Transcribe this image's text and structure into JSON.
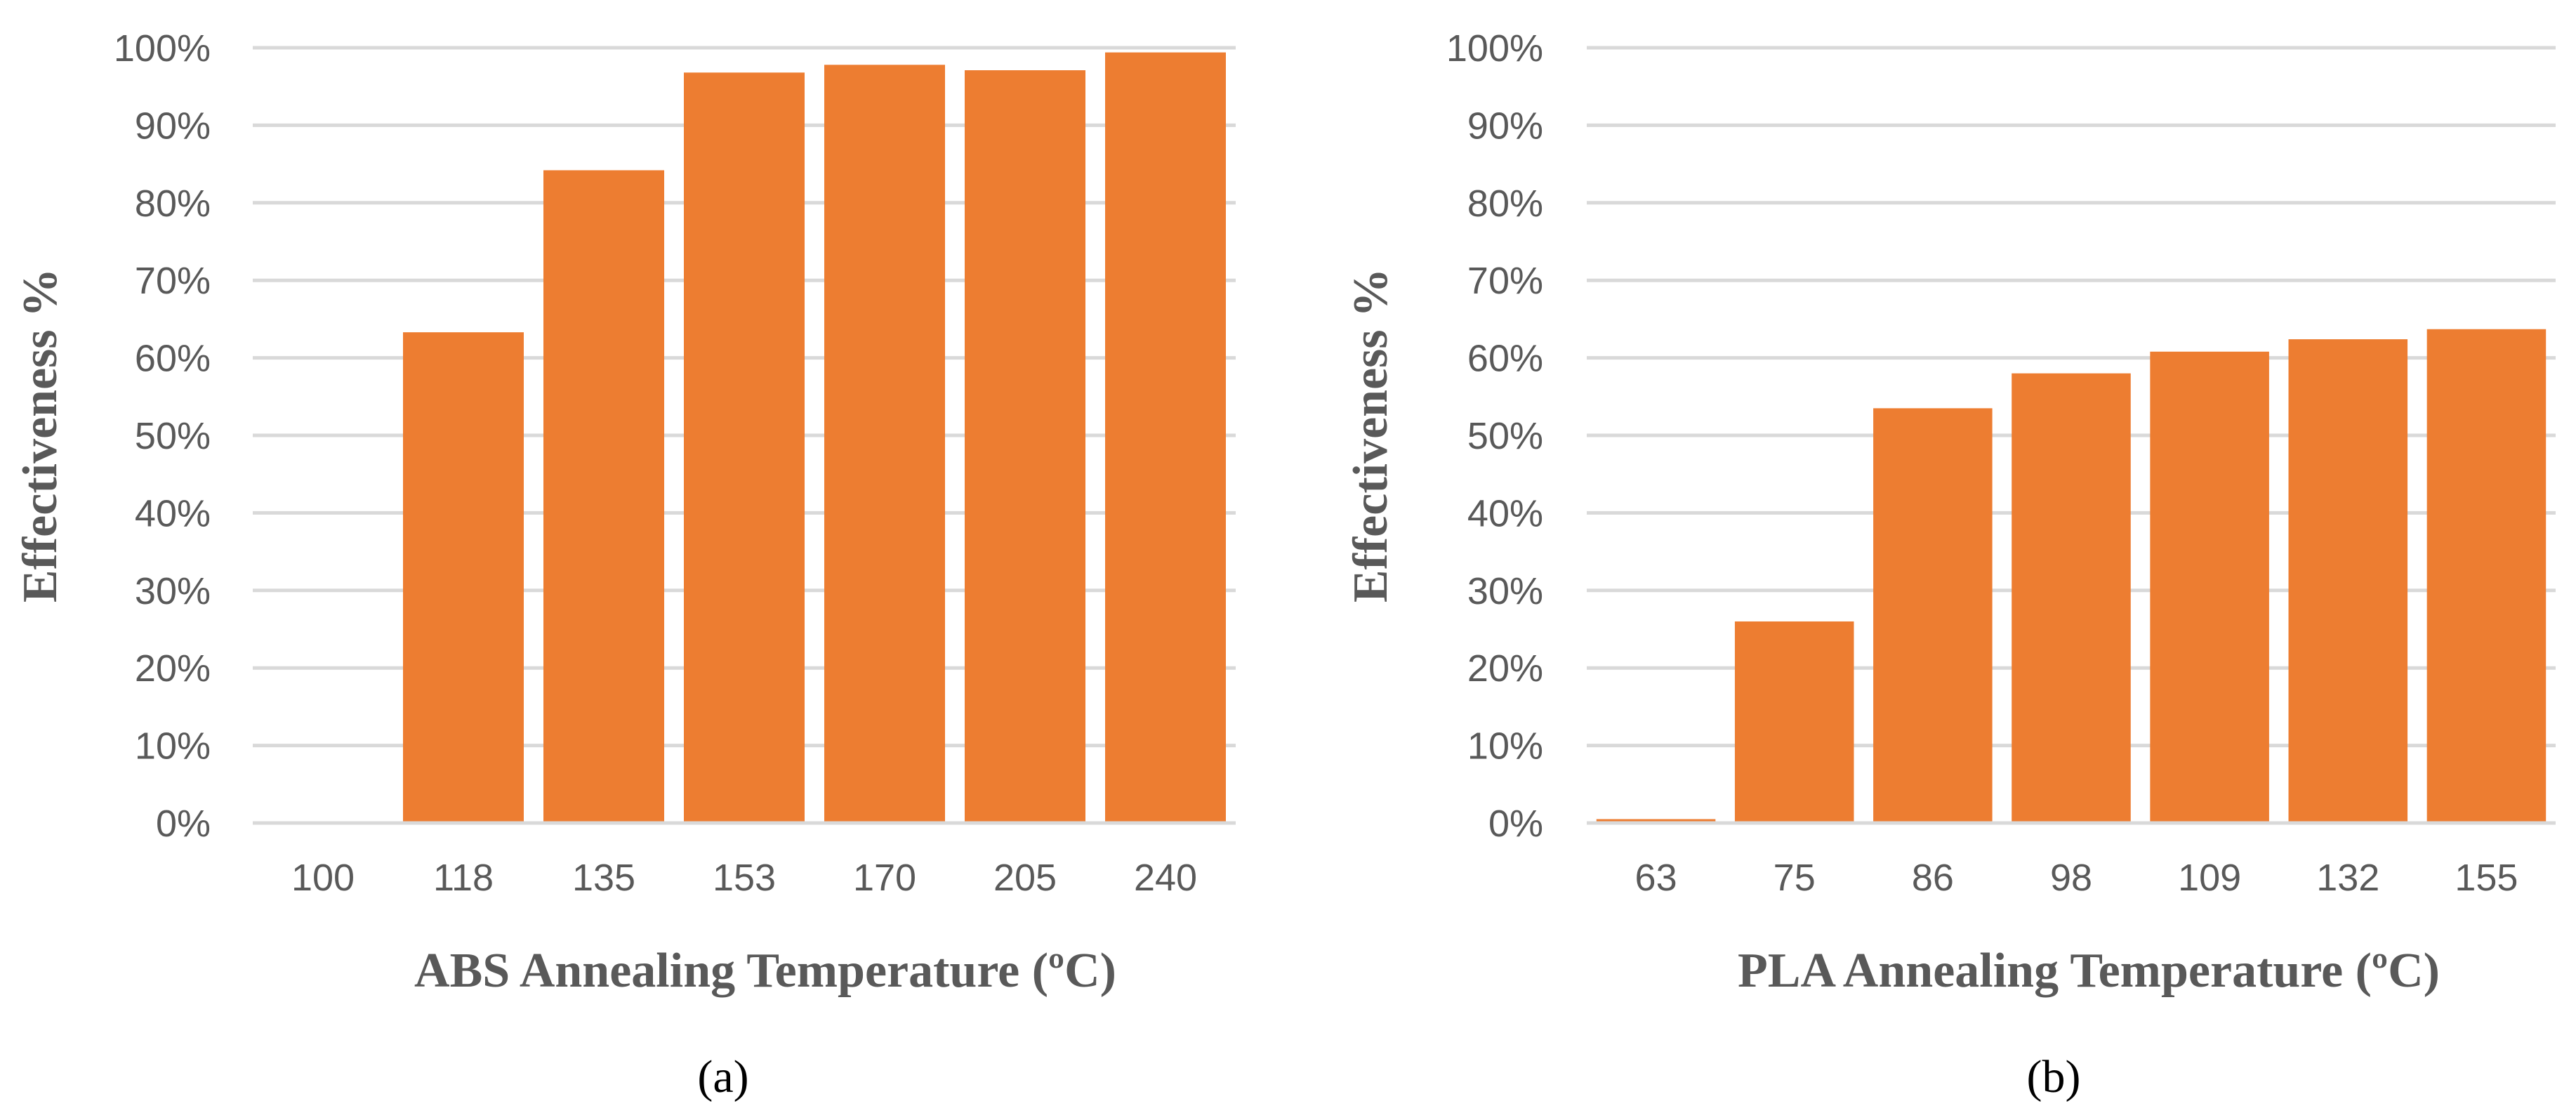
{
  "colors": {
    "bar": "#ED7D31",
    "grid": "#D9D9D9",
    "text": "#595959"
  },
  "chart_data": [
    {
      "type": "bar",
      "panel_label": "(a)",
      "xlabel": "ABS Annealing Temperature (ºC)",
      "ylabel": "Effectiveness %",
      "categories": [
        "100",
        "118",
        "135",
        "153",
        "170",
        "205",
        "240"
      ],
      "values": [
        0,
        63.3,
        84.2,
        96.8,
        97.8,
        97.1,
        99.4
      ],
      "ylim": [
        0,
        100
      ],
      "yticks": [
        "0%",
        "10%",
        "20%",
        "30%",
        "40%",
        "50%",
        "60%",
        "70%",
        "80%",
        "90%",
        "100%"
      ],
      "grid": true
    },
    {
      "type": "bar",
      "panel_label": "(b)",
      "xlabel": "PLA Annealing Temperature (ºC)",
      "ylabel": "Effectiveness %",
      "categories": [
        "63",
        "75",
        "86",
        "98",
        "109",
        "132",
        "155"
      ],
      "values": [
        0.5,
        26.0,
        53.5,
        58.0,
        60.8,
        62.4,
        63.7
      ],
      "ylim": [
        0,
        100
      ],
      "yticks": [
        "0%",
        "10%",
        "20%",
        "30%",
        "40%",
        "50%",
        "60%",
        "70%",
        "80%",
        "90%",
        "100%"
      ],
      "grid": true
    }
  ]
}
